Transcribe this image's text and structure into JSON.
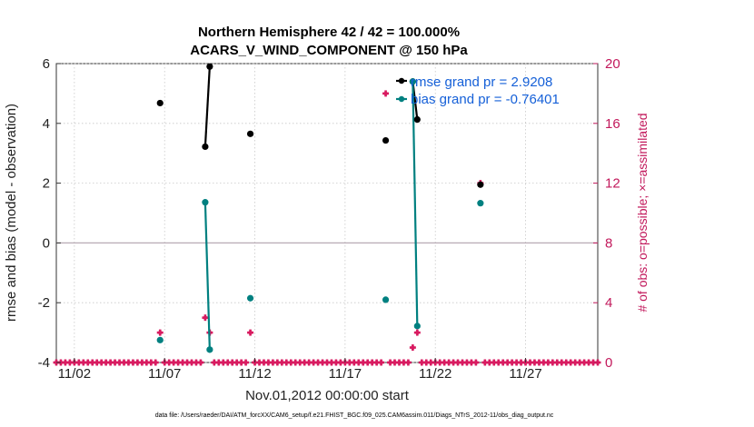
{
  "chart_data": {
    "type": "line",
    "title": "Northern Hemisphere 42 / 42 = 100.000%",
    "subtitle": "ACARS_V_WIND_COMPONENT @ 150 hPa",
    "xlabel": "Nov.01,2012 00:00:00 start",
    "ylabel": "rmse and bias (model - observation)",
    "y2label": "# of obs: o=possible; ×=assimilated",
    "footer": "data file: /Users/raeder/DAI/ATM_forcXX/CAM6_setup/f.e21.FHIST_BGC.f09_025.CAM6assim.011/Diags_NTrS_2012-11/obs_diag_output.nc",
    "xlim": [
      0.5,
      30.5
    ],
    "ylim": [
      -4,
      6
    ],
    "y2lim": [
      0,
      20
    ],
    "x_ticks": [
      1.5,
      6.5,
      11.5,
      16.5,
      21.5,
      26.5
    ],
    "x_tick_labels": [
      "11/02",
      "11/07",
      "11/12",
      "11/17",
      "11/22",
      "11/27"
    ],
    "y_ticks": [
      -4,
      -2,
      0,
      2,
      4,
      6
    ],
    "y_tick_labels": [
      "-4",
      "-2",
      "0",
      "2",
      "4",
      "6"
    ],
    "y2_ticks": [
      0,
      4,
      8,
      12,
      16,
      20
    ],
    "y2_tick_labels": [
      "0",
      "4",
      "8",
      "12",
      "16",
      "20"
    ],
    "zero_line": 0,
    "series": [
      {
        "name": "rmse grand pr = 2.9208",
        "color": "#000000",
        "axis": "left",
        "points": [
          [
            6.25,
            4.68
          ],
          [
            8.75,
            3.22
          ],
          [
            9.0,
            5.9
          ],
          [
            11.25,
            3.65
          ],
          [
            18.75,
            3.43
          ],
          [
            20.25,
            5.4
          ],
          [
            20.5,
            4.13
          ],
          [
            24.0,
            1.95
          ]
        ]
      },
      {
        "name": "bias grand pr = -0.76401",
        "color": "#008080",
        "axis": "left",
        "points": [
          [
            6.25,
            -3.25
          ],
          [
            8.75,
            1.36
          ],
          [
            9.0,
            -3.57
          ],
          [
            11.25,
            -1.85
          ],
          [
            18.75,
            -1.9
          ],
          [
            20.25,
            5.4
          ],
          [
            20.5,
            -2.78
          ],
          [
            24.0,
            1.33
          ]
        ]
      }
    ],
    "obs_counts": {
      "color": "#d81b60",
      "axis": "right",
      "x_start": 0.5,
      "x_step": 0.25,
      "nonzero": [
        [
          6.25,
          2
        ],
        [
          8.75,
          3
        ],
        [
          9.0,
          2
        ],
        [
          11.25,
          2
        ],
        [
          18.75,
          18
        ],
        [
          20.25,
          1
        ],
        [
          20.5,
          2
        ],
        [
          24.0,
          12
        ]
      ]
    }
  }
}
